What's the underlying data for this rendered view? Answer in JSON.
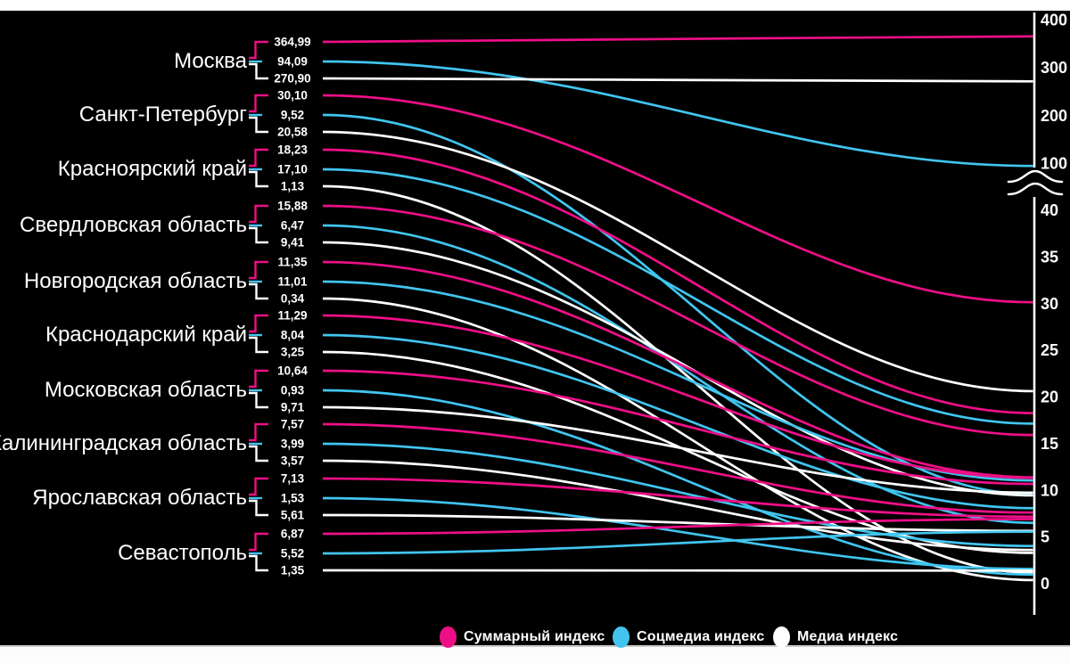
{
  "page": {
    "background": "#ffffff",
    "chart_background": "#000000"
  },
  "chart_data": {
    "type": "line",
    "title": "",
    "description": "Slope chart: media indices of Russian regions converging to a broken-scale right axis",
    "colors": {
      "summary": "#ee0f87",
      "socmedia": "#41c5ef",
      "media": "#ffffff",
      "axis": "#ffffff",
      "text": "#ffffff"
    },
    "legend": [
      {
        "key": "summary",
        "label": "Суммарный индекс",
        "color": "#ee0f87"
      },
      {
        "key": "socmedia",
        "label": "Соцмедиа индекс",
        "color": "#41c5ef"
      },
      {
        "key": "media",
        "label": "Медиа индекс",
        "color": "#ffffff"
      }
    ],
    "series_order": [
      "summary",
      "socmedia",
      "media"
    ],
    "regions": [
      {
        "name": "Москва",
        "values": {
          "summary": 364.99,
          "socmedia": 94.09,
          "media": 270.9
        },
        "display": {
          "summary": "364,99",
          "socmedia": "94,09",
          "media": "270,90"
        }
      },
      {
        "name": "Санкт-Петербург",
        "values": {
          "summary": 30.1,
          "socmedia": 9.52,
          "media": 20.58
        },
        "display": {
          "summary": "30,10",
          "socmedia": "9,52",
          "media": "20,58"
        }
      },
      {
        "name": "Красноярский край",
        "values": {
          "summary": 18.23,
          "socmedia": 17.1,
          "media": 1.13
        },
        "display": {
          "summary": "18,23",
          "socmedia": "17,10",
          "media": "1,13"
        }
      },
      {
        "name": "Свердловская область",
        "values": {
          "summary": 15.88,
          "socmedia": 6.47,
          "media": 9.41
        },
        "display": {
          "summary": "15,88",
          "socmedia": "6,47",
          "media": "9,41"
        }
      },
      {
        "name": "Новгородская область",
        "values": {
          "summary": 11.35,
          "socmedia": 11.01,
          "media": 0.34
        },
        "display": {
          "summary": "11,35",
          "socmedia": "11,01",
          "media": "0,34"
        }
      },
      {
        "name": "Краснодарский край",
        "values": {
          "summary": 11.29,
          "socmedia": 8.04,
          "media": 3.25
        },
        "display": {
          "summary": "11,29",
          "socmedia": "8,04",
          "media": "3,25"
        }
      },
      {
        "name": "Московская область",
        "values": {
          "summary": 10.64,
          "socmedia": 0.93,
          "media": 9.71
        },
        "display": {
          "summary": "10,64",
          "socmedia": "0,93",
          "media": "9,71"
        }
      },
      {
        "name": "Калининградская область",
        "values": {
          "summary": 7.57,
          "socmedia": 3.99,
          "media": 3.57
        },
        "display": {
          "summary": "7,57",
          "socmedia": "3,99",
          "media": "3,57"
        }
      },
      {
        "name": "Ярославская область",
        "values": {
          "summary": 7.13,
          "socmedia": 1.53,
          "media": 5.61
        },
        "display": {
          "summary": "7,13",
          "socmedia": "1,53",
          "media": "5,61"
        }
      },
      {
        "name": "Севастополь",
        "values": {
          "summary": 6.87,
          "socmedia": 5.52,
          "media": 1.35
        },
        "display": {
          "summary": "6,87",
          "socmedia": "5,52",
          "media": "1,35"
        }
      }
    ],
    "right_axis": {
      "has_break": true,
      "upper_range": [
        100,
        400
      ],
      "upper_ticks": [
        "400",
        "300",
        "200",
        "100"
      ],
      "lower_range": [
        0,
        40
      ],
      "lower_ticks": [
        "40",
        "35",
        "30",
        "25",
        "20",
        "15",
        "10",
        "5",
        "0"
      ]
    }
  }
}
